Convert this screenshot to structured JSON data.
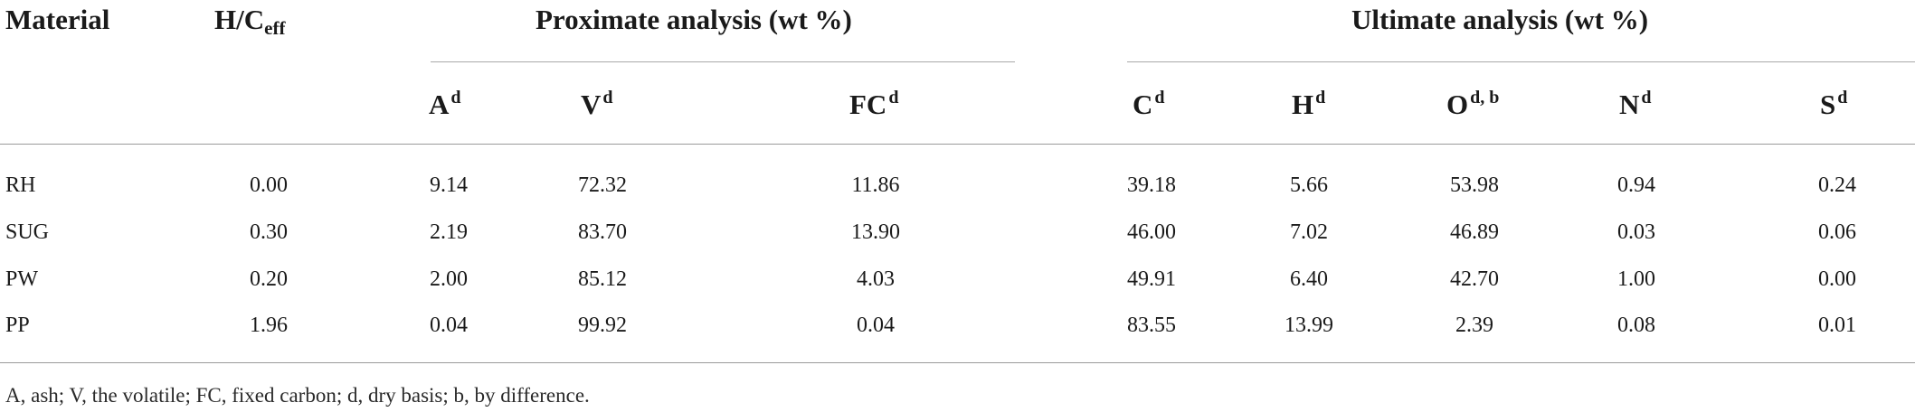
{
  "table": {
    "headers": {
      "material": "Material",
      "hc_main": "H/C",
      "hc_sub": "eff",
      "proximate": "Proximate analysis (wt %)",
      "ultimate": "Ultimate analysis (wt %)"
    },
    "subheaders": [
      {
        "base": "A",
        "sup": "d"
      },
      {
        "base": "V",
        "sup": "d"
      },
      {
        "base": "FC",
        "sup": "d"
      },
      {
        "base": "C",
        "sup": "d"
      },
      {
        "base": "H",
        "sup": "d"
      },
      {
        "base": "O",
        "sup": "d, b"
      },
      {
        "base": "N",
        "sup": "d"
      },
      {
        "base": "S",
        "sup": "d"
      }
    ],
    "rows": [
      {
        "material": "RH",
        "values": [
          "0.00",
          "9.14",
          "72.32",
          "11.86",
          "39.18",
          "5.66",
          "53.98",
          "0.94",
          "0.24"
        ]
      },
      {
        "material": "SUG",
        "values": [
          "0.30",
          "2.19",
          "83.70",
          "13.90",
          "46.00",
          "7.02",
          "46.89",
          "0.03",
          "0.06"
        ]
      },
      {
        "material": "PW",
        "values": [
          "0.20",
          "2.00",
          "85.12",
          "4.03",
          "49.91",
          "6.40",
          "42.70",
          "1.00",
          "0.00"
        ]
      },
      {
        "material": "PP",
        "values": [
          "1.96",
          "0.04",
          "99.92",
          "0.04",
          "83.55",
          "13.99",
          "2.39",
          "0.08",
          "0.01"
        ]
      }
    ],
    "footnote": "A, ash; V, the volatile; FC, fixed carbon; d, dry basis; b, by difference."
  }
}
